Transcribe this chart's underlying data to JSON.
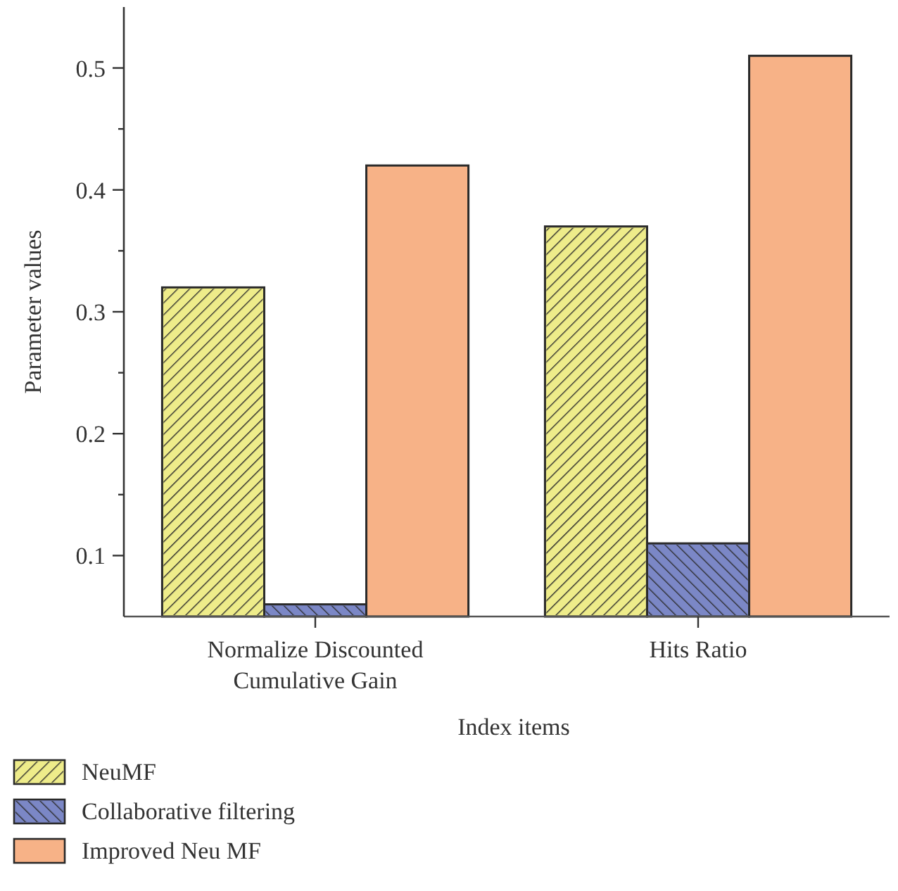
{
  "chart_data": {
    "type": "bar",
    "xlabel": "Index items",
    "ylabel": "Parameter values",
    "categories": [
      "Normalize Discounted\nCumulative Gain",
      "Hits Ratio"
    ],
    "series": [
      {
        "name": "NeuMF",
        "color": "#eeec8a",
        "values": [
          0.32,
          0.37
        ]
      },
      {
        "name": "Collaborative filtering",
        "color": "#7b87c6",
        "values": [
          0.06,
          0.11
        ]
      },
      {
        "name": "Improved Neu MF",
        "color": "#f7b287",
        "values": [
          0.42,
          0.51
        ]
      }
    ],
    "ylim": [
      0.05,
      0.55
    ],
    "yticks": [
      0.1,
      {
        "value": 0.15,
        "label": null
      },
      0.2,
      {
        "value": 0.25,
        "label": null
      },
      0.3,
      {
        "value": 0.35,
        "label": null
      },
      0.4,
      {
        "value": 0.45,
        "label": null
      },
      0.5
    ],
    "grid": false,
    "legend": "bottom"
  }
}
